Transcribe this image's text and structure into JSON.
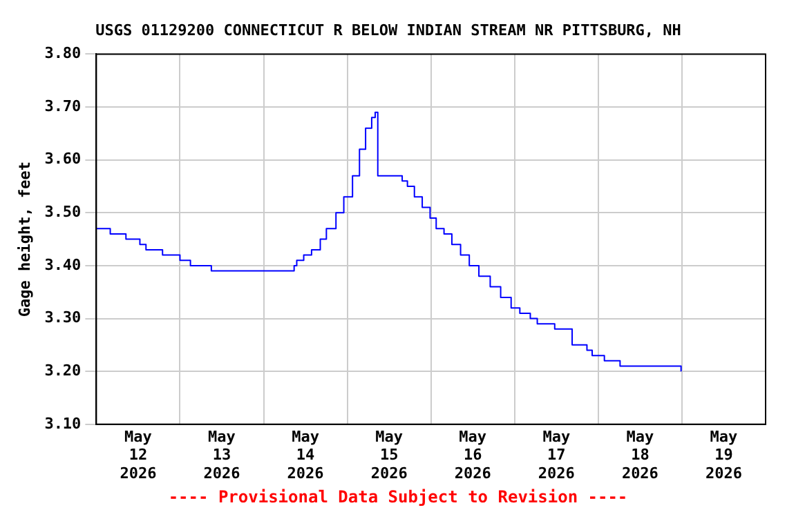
{
  "chart_data": {
    "type": "step",
    "title": "USGS 01129200 CONNECTICUT R BELOW INDIAN STREAM NR PITTSBURG, NH",
    "ylabel": "Gage height, feet",
    "annotations": [
      "---- Provisional Data Subject to Revision ----"
    ],
    "x": [
      "2026-05-12T00:00",
      "2026-05-12T04:00",
      "2026-05-12T08:30",
      "2026-05-12T12:30",
      "2026-05-12T14:15",
      "2026-05-12T19:00",
      "2026-05-13T00:00",
      "2026-05-13T03:00",
      "2026-05-13T09:00",
      "2026-05-14T08:45",
      "2026-05-14T09:30",
      "2026-05-14T11:30",
      "2026-05-14T13:45",
      "2026-05-14T16:15",
      "2026-05-14T18:00",
      "2026-05-14T20:45",
      "2026-05-14T23:00",
      "2026-05-15T01:30",
      "2026-05-15T03:30",
      "2026-05-15T05:15",
      "2026-05-15T07:00",
      "2026-05-15T08:00",
      "2026-05-15T08:45",
      "2026-05-15T15:45",
      "2026-05-15T17:15",
      "2026-05-15T19:15",
      "2026-05-15T21:30",
      "2026-05-15T23:45",
      "2026-05-16T01:30",
      "2026-05-16T03:45",
      "2026-05-16T06:00",
      "2026-05-16T08:30",
      "2026-05-16T11:00",
      "2026-05-16T13:45",
      "2026-05-16T17:00",
      "2026-05-16T20:00",
      "2026-05-16T23:00",
      "2026-05-17T01:30",
      "2026-05-17T04:30",
      "2026-05-17T06:30",
      "2026-05-17T11:30",
      "2026-05-17T16:30",
      "2026-05-17T20:45",
      "2026-05-17T22:15",
      "2026-05-18T01:45",
      "2026-05-18T06:15",
      "2026-05-18T23:45"
    ],
    "values": [
      3.47,
      3.46,
      3.45,
      3.44,
      3.43,
      3.42,
      3.41,
      3.4,
      3.39,
      3.4,
      3.41,
      3.42,
      3.43,
      3.45,
      3.47,
      3.5,
      3.53,
      3.57,
      3.62,
      3.66,
      3.68,
      3.69,
      3.57,
      3.56,
      3.55,
      3.53,
      3.51,
      3.49,
      3.47,
      3.46,
      3.44,
      3.42,
      3.4,
      3.38,
      3.36,
      3.34,
      3.32,
      3.31,
      3.3,
      3.29,
      3.28,
      3.25,
      3.24,
      3.23,
      3.22,
      3.21,
      3.2
    ],
    "color": "#0000ff",
    "xlim": [
      "2026-05-12T00:00",
      "2026-05-20T00:00"
    ],
    "xticks": [
      {
        "value": "2026-05-12T00:00",
        "label": null
      },
      {
        "value": "2026-05-12T12:00",
        "label": "May\n12\n2026"
      },
      {
        "value": "2026-05-13T00:00",
        "label": null
      },
      {
        "value": "2026-05-13T12:00",
        "label": "May\n13\n2026"
      },
      {
        "value": "2026-05-14T00:00",
        "label": null
      },
      {
        "value": "2026-05-14T12:00",
        "label": "May\n14\n2026"
      },
      {
        "value": "2026-05-15T00:00",
        "label": null
      },
      {
        "value": "2026-05-15T12:00",
        "label": "May\n15\n2026"
      },
      {
        "value": "2026-05-16T00:00",
        "label": null
      },
      {
        "value": "2026-05-16T12:00",
        "label": "May\n16\n2026"
      },
      {
        "value": "2026-05-17T00:00",
        "label": null
      },
      {
        "value": "2026-05-17T12:00",
        "label": "May\n17\n2026"
      },
      {
        "value": "2026-05-18T00:00",
        "label": null
      },
      {
        "value": "2026-05-18T12:00",
        "label": "May\n18\n2026"
      },
      {
        "value": "2026-05-19T00:00",
        "label": null
      },
      {
        "value": "2026-05-19T12:00",
        "label": "May\n19\n2026"
      },
      {
        "value": "2026-05-20T00:00",
        "label": null
      }
    ],
    "ylim": [
      3.1,
      3.8
    ],
    "yticks": [
      {
        "value": 3.1,
        "label": "3.10"
      },
      {
        "value": 3.2,
        "label": "3.20"
      },
      {
        "value": 3.3,
        "label": "3.30"
      },
      {
        "value": 3.4,
        "label": "3.40"
      },
      {
        "value": 3.5,
        "label": "3.50"
      },
      {
        "value": 3.6,
        "label": "3.60"
      },
      {
        "value": 3.7,
        "label": "3.70"
      },
      {
        "value": 3.8,
        "label": "3.80"
      }
    ],
    "grid": true,
    "legend": false
  }
}
